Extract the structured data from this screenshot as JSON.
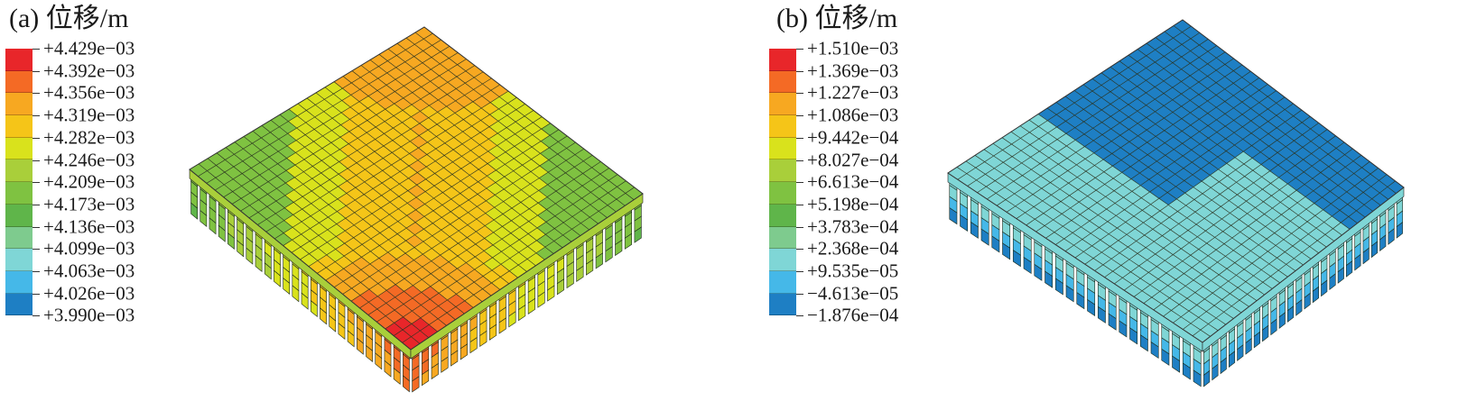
{
  "panels": [
    {
      "id": "a",
      "title": "(a) 位移/m",
      "legend_values": [
        "+4.429e−03",
        "+4.392e−03",
        "+4.356e−03",
        "+4.319e−03",
        "+4.282e−03",
        "+4.246e−03",
        "+4.209e−03",
        "+4.173e−03",
        "+4.136e−03",
        "+4.099e−03",
        "+4.063e−03",
        "+4.026e−03",
        "+3.990e−03"
      ],
      "legend_colors": [
        "#e8262a",
        "#f46a25",
        "#f7a821",
        "#f5c518",
        "#d9e21c",
        "#a9cf3a",
        "#7fc241",
        "#5fb54a",
        "#7ecb8e",
        "#7fd6d6",
        "#45b8e8",
        "#1e7fc4",
        "#1358a8"
      ]
    },
    {
      "id": "b",
      "title": "(b) 位移/m",
      "legend_values": [
        "+1.510e−03",
        "+1.369e−03",
        "+1.227e−03",
        "+1.086e−03",
        "+9.442e−04",
        "+8.027e−04",
        "+6.613e−04",
        "+5.198e−04",
        "+3.783e−04",
        "+2.368e−04",
        "+9.535e−05",
        "−4.613e−05",
        "−1.876e−04"
      ],
      "legend_colors": [
        "#e8262a",
        "#f46a25",
        "#f7a821",
        "#f5c518",
        "#d9e21c",
        "#a9cf3a",
        "#7fc241",
        "#5fb54a",
        "#7ecb8e",
        "#7fd6d6",
        "#45b8e8",
        "#1e7fc4",
        "#1358a8"
      ]
    }
  ]
}
